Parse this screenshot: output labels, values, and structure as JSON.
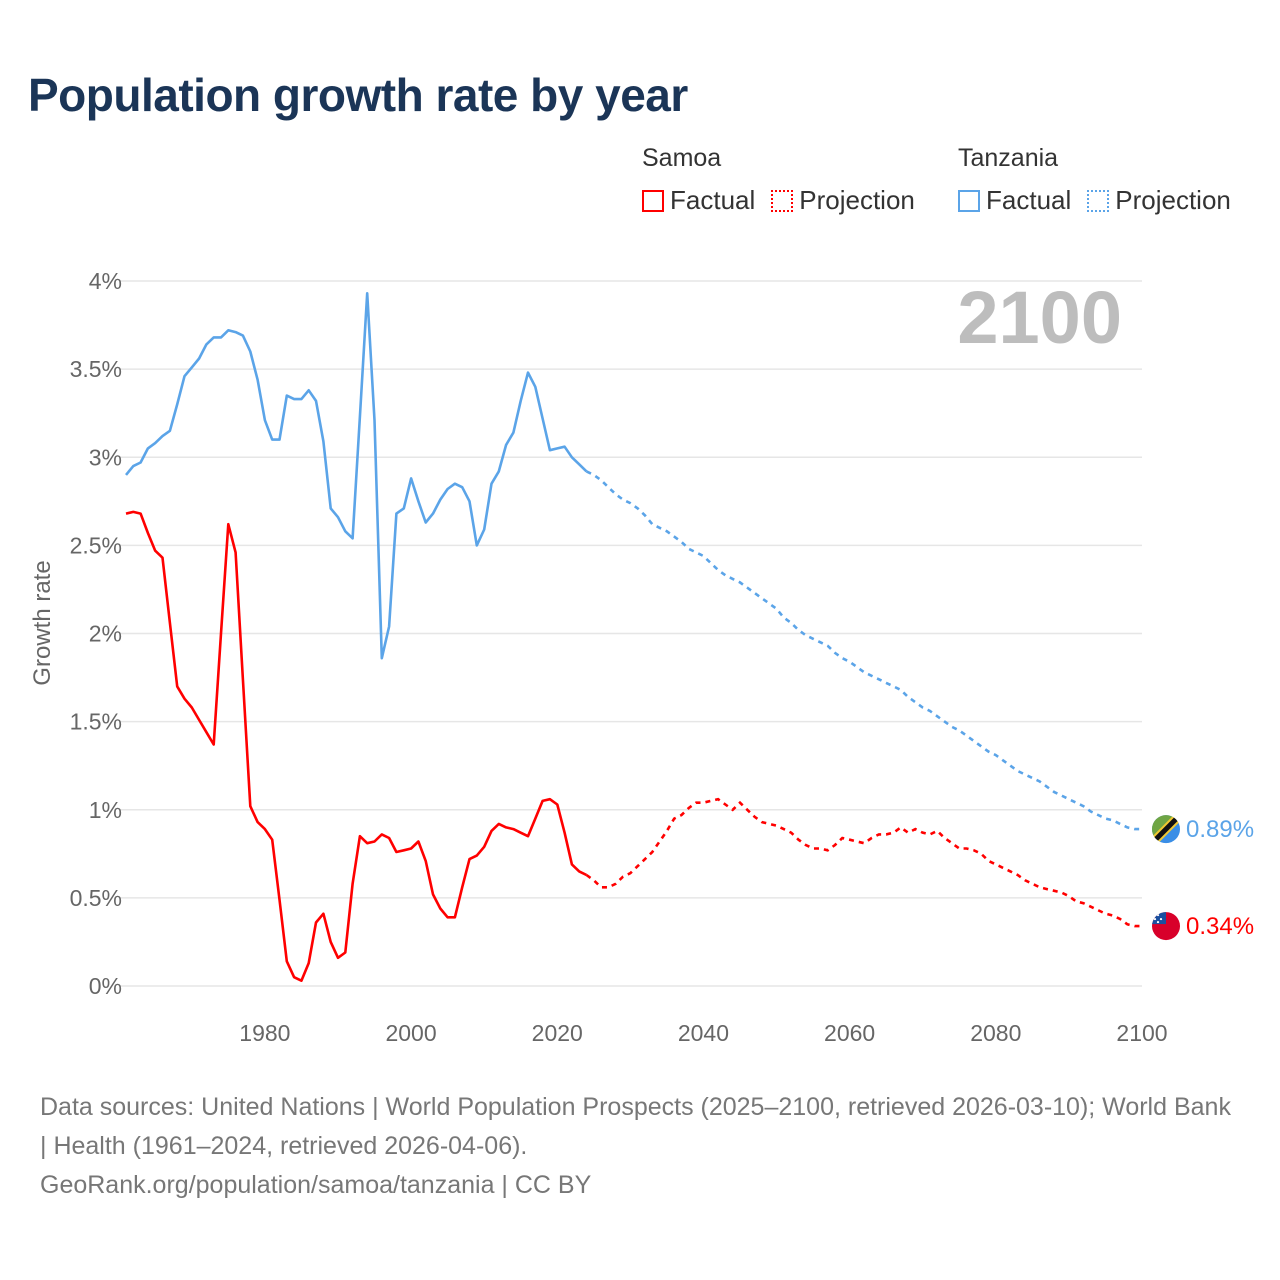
{
  "chart_data": {
    "type": "line",
    "title": "Population growth rate by year",
    "ylabel": "Growth rate",
    "xlabel": "",
    "xlim": [
      1961,
      2100
    ],
    "ylim": [
      0,
      4
    ],
    "x_ticks": [
      "1980",
      "2000",
      "2020",
      "2040",
      "2060",
      "2080",
      "2100"
    ],
    "x_tick_values": [
      1980,
      2000,
      2020,
      2040,
      2060,
      2080,
      2100
    ],
    "y_ticks": [
      "0%",
      "0.5%",
      "1%",
      "1.5%",
      "2%",
      "2.5%",
      "3%",
      "3.5%",
      "4%"
    ],
    "y_tick_values": [
      0,
      0.5,
      1,
      1.5,
      2,
      2.5,
      3,
      3.5,
      4
    ],
    "grid": true,
    "year_label": "2100",
    "legend_placement": "top-right",
    "legend": {
      "groups": [
        {
          "name": "Samoa",
          "factual": "Factual",
          "projection": "Projection",
          "color": "#ff0000"
        },
        {
          "name": "Tanzania",
          "factual": "Factual",
          "projection": "Projection",
          "color": "#5ba4e8"
        }
      ]
    },
    "series": [
      {
        "name": "Samoa",
        "color": "#ff0000",
        "end_label": "0.34%",
        "factual_start": 1961,
        "factual": [
          2.68,
          2.69,
          2.68,
          2.57,
          2.47,
          2.43,
          2.06,
          1.7,
          1.63,
          1.58,
          1.51,
          1.44,
          1.37,
          2.0,
          2.62,
          2.46,
          1.74,
          1.02,
          0.93,
          0.89,
          0.83,
          0.49,
          0.14,
          0.05,
          0.03,
          0.13,
          0.36,
          0.41,
          0.25,
          0.16,
          0.19,
          0.58,
          0.85,
          0.81,
          0.82,
          0.86,
          0.84,
          0.76,
          0.77,
          0.78,
          0.82,
          0.71,
          0.52,
          0.44,
          0.39,
          0.39,
          0.56,
          0.72,
          0.74,
          0.79,
          0.88,
          0.92,
          0.9,
          0.89,
          0.87,
          0.85,
          0.95,
          1.05,
          1.06,
          1.03,
          0.87,
          0.69,
          0.65,
          0.63
        ],
        "projection_start": 2025,
        "projection": [
          0.6,
          0.56,
          0.56,
          0.58,
          0.62,
          0.64,
          0.68,
          0.72,
          0.76,
          0.82,
          0.88,
          0.95,
          0.97,
          1.01,
          1.04,
          1.04,
          1.05,
          1.06,
          1.03,
          1.0,
          1.04,
          1.0,
          0.96,
          0.93,
          0.92,
          0.91,
          0.89,
          0.87,
          0.83,
          0.8,
          0.78,
          0.78,
          0.77,
          0.8,
          0.84,
          0.83,
          0.82,
          0.81,
          0.84,
          0.86,
          0.86,
          0.87,
          0.9,
          0.87,
          0.89,
          0.87,
          0.86,
          0.88,
          0.84,
          0.81,
          0.78,
          0.78,
          0.77,
          0.75,
          0.71,
          0.69,
          0.67,
          0.65,
          0.63,
          0.6,
          0.58,
          0.56,
          0.55,
          0.54,
          0.53,
          0.51,
          0.48,
          0.47,
          0.45,
          0.43,
          0.41,
          0.4,
          0.38,
          0.35,
          0.34,
          0.34
        ]
      },
      {
        "name": "Tanzania",
        "color": "#5ba4e8",
        "end_label": "0.89%",
        "factual_start": 1961,
        "factual": [
          2.9,
          2.95,
          2.97,
          3.05,
          3.08,
          3.12,
          3.15,
          3.3,
          3.46,
          3.51,
          3.56,
          3.64,
          3.68,
          3.68,
          3.72,
          3.71,
          3.69,
          3.6,
          3.44,
          3.21,
          3.1,
          3.1,
          3.35,
          3.33,
          3.33,
          3.38,
          3.32,
          3.09,
          2.71,
          2.66,
          2.58,
          2.54,
          3.23,
          3.93,
          3.21,
          1.86,
          2.04,
          2.68,
          2.71,
          2.88,
          2.75,
          2.63,
          2.68,
          2.76,
          2.82,
          2.85,
          2.83,
          2.75,
          2.5,
          2.59,
          2.85,
          2.92,
          3.07,
          3.14,
          3.32,
          3.48,
          3.4,
          3.22,
          3.04,
          3.05,
          3.06,
          3.0,
          2.96,
          2.92
        ],
        "projection_start": 2025,
        "projection": [
          2.9,
          2.87,
          2.83,
          2.79,
          2.76,
          2.74,
          2.71,
          2.67,
          2.62,
          2.6,
          2.58,
          2.55,
          2.52,
          2.48,
          2.46,
          2.44,
          2.4,
          2.36,
          2.33,
          2.31,
          2.29,
          2.26,
          2.23,
          2.2,
          2.17,
          2.14,
          2.09,
          2.06,
          2.02,
          1.99,
          1.97,
          1.95,
          1.93,
          1.89,
          1.86,
          1.84,
          1.81,
          1.78,
          1.76,
          1.74,
          1.72,
          1.7,
          1.68,
          1.64,
          1.61,
          1.58,
          1.56,
          1.53,
          1.5,
          1.47,
          1.45,
          1.42,
          1.39,
          1.36,
          1.33,
          1.31,
          1.28,
          1.25,
          1.22,
          1.2,
          1.18,
          1.16,
          1.13,
          1.1,
          1.08,
          1.06,
          1.04,
          1.02,
          0.99,
          0.97,
          0.95,
          0.94,
          0.92,
          0.9,
          0.89,
          0.89
        ]
      }
    ]
  },
  "footer": {
    "line1": "Data sources: United Nations | World Population Prospects (2025–2100, retrieved 2026-03-10); World Bank | Health (1961–2024, retrieved 2026-04-06).",
    "line2": "GeoRank.org/population/samoa/tanzania | CC BY"
  }
}
